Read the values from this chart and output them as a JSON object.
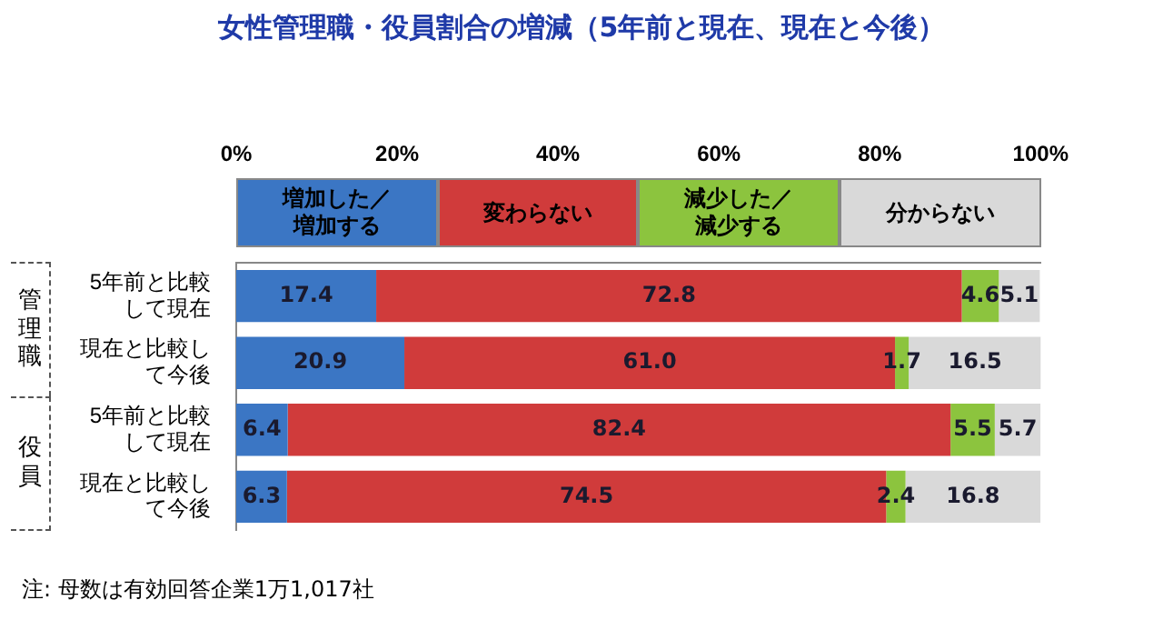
{
  "chart_data": {
    "type": "bar",
    "orientation": "horizontal",
    "stacked": true,
    "title": "女性管理職・役員割合の増減（5年前と現在、現在と今後）",
    "categories": [
      "5年前と比較して現在",
      "現在と比較して今後",
      "5年前と比較して現在",
      "現在と比較して今後"
    ],
    "series": [
      {
        "name": "増加した／増加する",
        "color": "#3b76c4",
        "values": [
          17.4,
          20.9,
          6.4,
          6.3
        ],
        "value_labels": [
          "17.4",
          "20.9",
          "6.4",
          "6.3"
        ]
      },
      {
        "name": "変わらない",
        "color": "#d03b3b",
        "values": [
          72.8,
          61.0,
          82.4,
          74.5
        ],
        "value_labels": [
          "72.8",
          "61.0",
          "82.4",
          "74.5"
        ]
      },
      {
        "name": "減少した／減少する",
        "color": "#8cc43e",
        "values": [
          4.6,
          1.7,
          5.5,
          2.4
        ],
        "value_labels": [
          "4.6",
          "1.7",
          "5.5",
          "2.4"
        ]
      },
      {
        "name": "分からない",
        "color": "#d9d9d9",
        "values": [
          5.1,
          16.5,
          5.7,
          16.8
        ],
        "value_labels": [
          "5.1",
          "16.5",
          "5.7",
          "16.8"
        ]
      }
    ],
    "xlim": [
      0,
      100
    ],
    "xticks": [
      {
        "value": 0,
        "label": "0%"
      },
      {
        "value": 20,
        "label": "20%"
      },
      {
        "value": 40,
        "label": "40%"
      },
      {
        "value": 60,
        "label": "60%"
      },
      {
        "value": 80,
        "label": "80%"
      },
      {
        "value": 100,
        "label": "100%"
      }
    ],
    "legend": "top",
    "annotations": [
      "管理職",
      "役員",
      "注: 母数は有効回答企業1万1,017社"
    ]
  }
}
